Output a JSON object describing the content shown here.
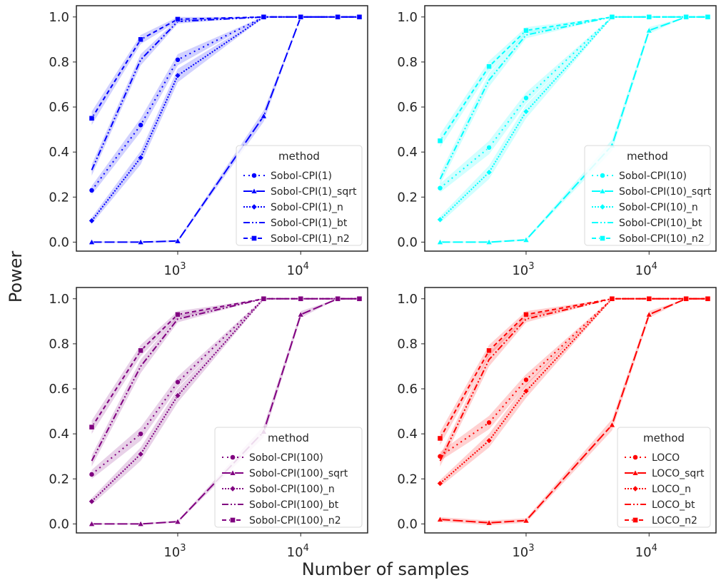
{
  "figure": {
    "ylabel": "Power",
    "xlabel": "Number of samples"
  },
  "chart_data": [
    {
      "type": "line",
      "color": "#0000ff",
      "legend_title": "method",
      "legend_loc": "lower-right",
      "xscale": "log",
      "xlim": [
        150,
        35000
      ],
      "ylim": [
        -0.04,
        1.05
      ],
      "yticks": [
        "0.0",
        "0.2",
        "0.4",
        "0.6",
        "0.8",
        "1.0"
      ],
      "xticks": [
        {
          "base": "10",
          "exp": "3"
        },
        {
          "base": "10",
          "exp": "4"
        }
      ],
      "x": [
        200,
        500,
        1000,
        5000,
        10000,
        20000,
        30000
      ],
      "series": [
        {
          "name": "Sobol-CPI(1)",
          "values": [
            0.23,
            0.52,
            0.81,
            1.0,
            1.0,
            1.0,
            1.0
          ],
          "ci": [
            0.02,
            0.03,
            0.025,
            0.002,
            0,
            0,
            0
          ]
        },
        {
          "name": "Sobol-CPI(1)_sqrt",
          "values": [
            0.0,
            0.0,
            0.005,
            0.56,
            1.0,
            1.0,
            1.0
          ],
          "ci": [
            0.003,
            0.003,
            0.005,
            0.025,
            0,
            0,
            0
          ]
        },
        {
          "name": "Sobol-CPI(1)_n",
          "values": [
            0.095,
            0.375,
            0.74,
            1.0,
            1.0,
            1.0,
            1.0
          ],
          "ci": [
            0.015,
            0.03,
            0.03,
            0.003,
            0,
            0,
            0
          ]
        },
        {
          "name": "Sobol-CPI(1)_bt",
          "values": [
            0.32,
            0.81,
            0.98,
            1.0,
            1.0,
            1.0,
            1.0
          ],
          "ci": [
            0.025,
            0.025,
            0.01,
            0,
            0,
            0,
            0
          ]
        },
        {
          "name": "Sobol-CPI(1)_n2",
          "values": [
            0.55,
            0.9,
            0.99,
            1.0,
            1.0,
            1.0,
            1.0
          ],
          "ci": [
            0.03,
            0.02,
            0.01,
            0,
            0,
            0,
            0
          ]
        }
      ]
    },
    {
      "type": "line",
      "color": "#00ffff",
      "legend_title": "method",
      "legend_loc": "lower-right",
      "xscale": "log",
      "xlim": [
        150,
        35000
      ],
      "ylim": [
        -0.04,
        1.05
      ],
      "yticks": [
        "0.0",
        "0.2",
        "0.4",
        "0.6",
        "0.8",
        "1.0"
      ],
      "xticks": [
        {
          "base": "10",
          "exp": "3"
        },
        {
          "base": "10",
          "exp": "4"
        }
      ],
      "x": [
        200,
        500,
        1000,
        5000,
        10000,
        20000,
        30000
      ],
      "series": [
        {
          "name": "Sobol-CPI(10)",
          "values": [
            0.24,
            0.42,
            0.64,
            1.0,
            1.0,
            1.0,
            1.0
          ],
          "ci": [
            0.02,
            0.03,
            0.025,
            0.002,
            0,
            0,
            0
          ]
        },
        {
          "name": "Sobol-CPI(10)_sqrt",
          "values": [
            0.0,
            0.0,
            0.01,
            0.43,
            0.94,
            1.0,
            1.0
          ],
          "ci": [
            0.003,
            0.003,
            0.005,
            0.025,
            0.015,
            0,
            0
          ]
        },
        {
          "name": "Sobol-CPI(10)_n",
          "values": [
            0.1,
            0.31,
            0.58,
            1.0,
            1.0,
            1.0,
            1.0
          ],
          "ci": [
            0.015,
            0.03,
            0.03,
            0.003,
            0,
            0,
            0
          ]
        },
        {
          "name": "Sobol-CPI(10)_bt",
          "values": [
            0.28,
            0.72,
            0.92,
            1.0,
            1.0,
            1.0,
            1.0
          ],
          "ci": [
            0.025,
            0.03,
            0.015,
            0,
            0,
            0,
            0
          ]
        },
        {
          "name": "Sobol-CPI(10)_n2",
          "values": [
            0.45,
            0.78,
            0.94,
            1.0,
            1.0,
            1.0,
            1.0
          ],
          "ci": [
            0.03,
            0.025,
            0.015,
            0,
            0,
            0,
            0
          ]
        }
      ]
    },
    {
      "type": "line",
      "color": "#800080",
      "legend_title": "method",
      "legend_loc": "lower-right",
      "xscale": "log",
      "xlim": [
        150,
        35000
      ],
      "ylim": [
        -0.04,
        1.05
      ],
      "yticks": [
        "0.0",
        "0.2",
        "0.4",
        "0.6",
        "0.8",
        "1.0"
      ],
      "xticks": [
        {
          "base": "10",
          "exp": "3"
        },
        {
          "base": "10",
          "exp": "4"
        }
      ],
      "x": [
        200,
        500,
        1000,
        5000,
        10000,
        20000,
        30000
      ],
      "series": [
        {
          "name": "Sobol-CPI(100)",
          "values": [
            0.22,
            0.4,
            0.63,
            1.0,
            1.0,
            1.0,
            1.0
          ],
          "ci": [
            0.02,
            0.03,
            0.025,
            0.002,
            0,
            0,
            0
          ]
        },
        {
          "name": "Sobol-CPI(100)_sqrt",
          "values": [
            0.0,
            0.0,
            0.01,
            0.41,
            0.93,
            1.0,
            1.0
          ],
          "ci": [
            0.003,
            0.003,
            0.005,
            0.025,
            0.015,
            0,
            0
          ]
        },
        {
          "name": "Sobol-CPI(100)_n",
          "values": [
            0.1,
            0.31,
            0.57,
            1.0,
            1.0,
            1.0,
            1.0
          ],
          "ci": [
            0.015,
            0.03,
            0.03,
            0.003,
            0,
            0,
            0
          ]
        },
        {
          "name": "Sobol-CPI(100)_bt",
          "values": [
            0.28,
            0.7,
            0.91,
            1.0,
            1.0,
            1.0,
            1.0
          ],
          "ci": [
            0.025,
            0.03,
            0.015,
            0,
            0,
            0,
            0
          ]
        },
        {
          "name": "Sobol-CPI(100)_n2",
          "values": [
            0.43,
            0.77,
            0.93,
            1.0,
            1.0,
            1.0,
            1.0
          ],
          "ci": [
            0.03,
            0.025,
            0.015,
            0,
            0,
            0,
            0
          ]
        }
      ]
    },
    {
      "type": "line",
      "color": "#ff0000",
      "legend_title": "method",
      "legend_loc": "lower-right",
      "xscale": "log",
      "xlim": [
        150,
        35000
      ],
      "ylim": [
        -0.04,
        1.05
      ],
      "yticks": [
        "0.0",
        "0.2",
        "0.4",
        "0.6",
        "0.8",
        "1.0"
      ],
      "xticks": [
        {
          "base": "10",
          "exp": "3"
        },
        {
          "base": "10",
          "exp": "4"
        }
      ],
      "x": [
        200,
        500,
        1000,
        5000,
        10000,
        20000,
        30000
      ],
      "series": [
        {
          "name": "LOCO",
          "values": [
            0.3,
            0.45,
            0.64,
            1.0,
            1.0,
            1.0,
            1.0
          ],
          "ci": [
            0.02,
            0.03,
            0.025,
            0.002,
            0,
            0,
            0
          ]
        },
        {
          "name": "LOCO_sqrt",
          "values": [
            0.02,
            0.005,
            0.015,
            0.44,
            0.93,
            1.0,
            1.0
          ],
          "ci": [
            0.01,
            0.01,
            0.01,
            0.025,
            0.015,
            0,
            0
          ]
        },
        {
          "name": "LOCO_n",
          "values": [
            0.18,
            0.37,
            0.59,
            1.0,
            1.0,
            1.0,
            1.0
          ],
          "ci": [
            0.015,
            0.03,
            0.03,
            0.003,
            0,
            0,
            0
          ]
        },
        {
          "name": "LOCO_bt",
          "values": [
            0.28,
            0.73,
            0.91,
            1.0,
            1.0,
            1.0,
            1.0
          ],
          "ci": [
            0.025,
            0.03,
            0.015,
            0,
            0,
            0,
            0
          ]
        },
        {
          "name": "LOCO_n2",
          "values": [
            0.38,
            0.77,
            0.93,
            1.0,
            1.0,
            1.0,
            1.0
          ],
          "ci": [
            0.03,
            0.025,
            0.015,
            0,
            0,
            0,
            0
          ]
        }
      ]
    }
  ]
}
